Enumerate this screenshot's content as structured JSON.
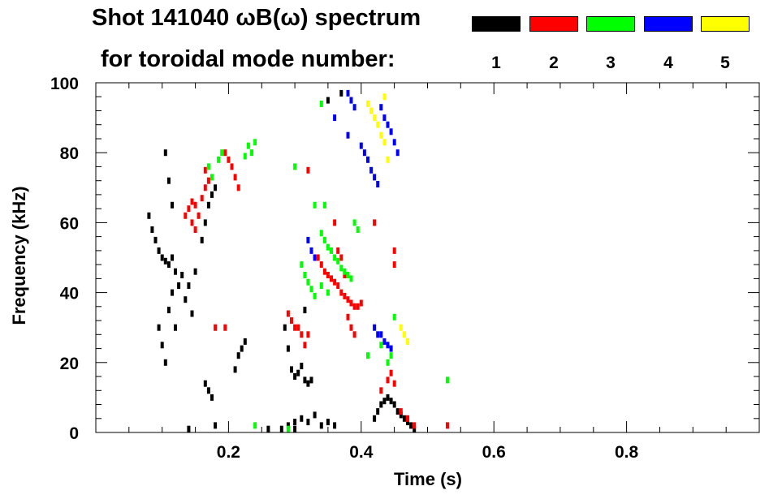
{
  "title_line_1": "Shot 141040 ωB(ω) spectrum",
  "title_line_2": "for toroidal mode number:",
  "legend": [
    {
      "label": "1",
      "color": "#000000"
    },
    {
      "label": "2",
      "color": "#ff0000"
    },
    {
      "label": "3",
      "color": "#00ff00"
    },
    {
      "label": "4",
      "color": "#0000ff"
    },
    {
      "label": "5",
      "color": "#ffff00"
    }
  ],
  "chart_data": {
    "type": "heatmap",
    "title": "Shot 141040 ωB(ω) spectrum for toroidal mode number: 1 2 3 4 5",
    "xlabel": "Time (s)",
    "ylabel": "Frequency (kHz)",
    "xlim": [
      0.0,
      1.0
    ],
    "ylim": [
      0,
      100
    ],
    "xticks": [
      0.2,
      0.4,
      0.6,
      0.8
    ],
    "xtick_labels": [
      "0.2",
      "0.4",
      "0.6",
      "0.8"
    ],
    "yticks": [
      0,
      20,
      40,
      60,
      80,
      100
    ],
    "ytick_labels": [
      "0",
      "20",
      "40",
      "60",
      "80",
      "100"
    ],
    "grid": false,
    "series": [
      {
        "name": "n=1",
        "color": "#000000",
        "points": [
          [
            0.08,
            62
          ],
          [
            0.085,
            58
          ],
          [
            0.09,
            55
          ],
          [
            0.095,
            52
          ],
          [
            0.1,
            50
          ],
          [
            0.105,
            49
          ],
          [
            0.11,
            48
          ],
          [
            0.115,
            50
          ],
          [
            0.12,
            46
          ],
          [
            0.125,
            42
          ],
          [
            0.095,
            30
          ],
          [
            0.1,
            25
          ],
          [
            0.105,
            20
          ],
          [
            0.11,
            35
          ],
          [
            0.115,
            40
          ],
          [
            0.12,
            30
          ],
          [
            0.13,
            45
          ],
          [
            0.135,
            38
          ],
          [
            0.14,
            42
          ],
          [
            0.145,
            34
          ],
          [
            0.105,
            80
          ],
          [
            0.11,
            72
          ],
          [
            0.115,
            65
          ],
          [
            0.15,
            46
          ],
          [
            0.16,
            55
          ],
          [
            0.165,
            60
          ],
          [
            0.17,
            65
          ],
          [
            0.175,
            68
          ],
          [
            0.18,
            70
          ],
          [
            0.21,
            18
          ],
          [
            0.215,
            22
          ],
          [
            0.22,
            24
          ],
          [
            0.225,
            26
          ],
          [
            0.165,
            14
          ],
          [
            0.17,
            12
          ],
          [
            0.175,
            10
          ],
          [
            0.285,
            30
          ],
          [
            0.29,
            24
          ],
          [
            0.295,
            18
          ],
          [
            0.3,
            16
          ],
          [
            0.305,
            17
          ],
          [
            0.31,
            19
          ],
          [
            0.315,
            15
          ],
          [
            0.32,
            14
          ],
          [
            0.325,
            15
          ],
          [
            0.29,
            2
          ],
          [
            0.3,
            3
          ],
          [
            0.31,
            4
          ],
          [
            0.32,
            3
          ],
          [
            0.33,
            5
          ],
          [
            0.34,
            2
          ],
          [
            0.35,
            3
          ],
          [
            0.36,
            2
          ],
          [
            0.42,
            4
          ],
          [
            0.425,
            6
          ],
          [
            0.43,
            8
          ],
          [
            0.435,
            9
          ],
          [
            0.44,
            10
          ],
          [
            0.445,
            9
          ],
          [
            0.45,
            8
          ],
          [
            0.455,
            6
          ],
          [
            0.46,
            5
          ],
          [
            0.465,
            4
          ],
          [
            0.47,
            3
          ],
          [
            0.475,
            2
          ],
          [
            0.48,
            1
          ],
          [
            0.26,
            1
          ],
          [
            0.3,
            1
          ],
          [
            0.18,
            2
          ],
          [
            0.28,
            1
          ],
          [
            0.35,
            95
          ],
          [
            0.37,
            97
          ],
          [
            0.315,
            35
          ],
          [
            0.14,
            1
          ]
        ]
      },
      {
        "name": "n=2",
        "color": "#ff0000",
        "points": [
          [
            0.135,
            62
          ],
          [
            0.14,
            64
          ],
          [
            0.145,
            66
          ],
          [
            0.15,
            65
          ],
          [
            0.155,
            62
          ],
          [
            0.16,
            67
          ],
          [
            0.165,
            70
          ],
          [
            0.17,
            72
          ],
          [
            0.145,
            60
          ],
          [
            0.15,
            58
          ],
          [
            0.2,
            78
          ],
          [
            0.205,
            76
          ],
          [
            0.21,
            73
          ],
          [
            0.215,
            70
          ],
          [
            0.195,
            80
          ],
          [
            0.165,
            75
          ],
          [
            0.335,
            50
          ],
          [
            0.34,
            48
          ],
          [
            0.345,
            46
          ],
          [
            0.35,
            45
          ],
          [
            0.355,
            44
          ],
          [
            0.36,
            43
          ],
          [
            0.365,
            42
          ],
          [
            0.37,
            40
          ],
          [
            0.375,
            39
          ],
          [
            0.38,
            38
          ],
          [
            0.385,
            37
          ],
          [
            0.39,
            36
          ],
          [
            0.395,
            36
          ],
          [
            0.4,
            37
          ],
          [
            0.38,
            33
          ],
          [
            0.375,
            45
          ],
          [
            0.37,
            50
          ],
          [
            0.365,
            52
          ],
          [
            0.385,
            30
          ],
          [
            0.39,
            28
          ],
          [
            0.29,
            34
          ],
          [
            0.295,
            32
          ],
          [
            0.3,
            30
          ],
          [
            0.305,
            30
          ],
          [
            0.31,
            28
          ],
          [
            0.315,
            25
          ],
          [
            0.32,
            28
          ],
          [
            0.44,
            15
          ],
          [
            0.445,
            17
          ],
          [
            0.45,
            14
          ],
          [
            0.43,
            12
          ],
          [
            0.46,
            6
          ],
          [
            0.47,
            4
          ],
          [
            0.48,
            2
          ],
          [
            0.45,
            52
          ],
          [
            0.45,
            48
          ],
          [
            0.42,
            60
          ],
          [
            0.36,
            60
          ],
          [
            0.53,
            2
          ],
          [
            0.32,
            75
          ],
          [
            0.18,
            30
          ],
          [
            0.195,
            30
          ]
        ]
      },
      {
        "name": "n=3",
        "color": "#00ff00",
        "points": [
          [
            0.23,
            82
          ],
          [
            0.235,
            80
          ],
          [
            0.24,
            83
          ],
          [
            0.225,
            79
          ],
          [
            0.185,
            78
          ],
          [
            0.19,
            80
          ],
          [
            0.175,
            73
          ],
          [
            0.17,
            76
          ],
          [
            0.34,
            57
          ],
          [
            0.345,
            55
          ],
          [
            0.35,
            53
          ],
          [
            0.355,
            52
          ],
          [
            0.36,
            50
          ],
          [
            0.365,
            49
          ],
          [
            0.37,
            47
          ],
          [
            0.375,
            46
          ],
          [
            0.38,
            45
          ],
          [
            0.385,
            44
          ],
          [
            0.31,
            48
          ],
          [
            0.315,
            45
          ],
          [
            0.32,
            43
          ],
          [
            0.325,
            41
          ],
          [
            0.33,
            39
          ],
          [
            0.34,
            42
          ],
          [
            0.35,
            40
          ],
          [
            0.39,
            60
          ],
          [
            0.395,
            58
          ],
          [
            0.345,
            65
          ],
          [
            0.44,
            20
          ],
          [
            0.445,
            22
          ],
          [
            0.43,
            25
          ],
          [
            0.41,
            22
          ],
          [
            0.45,
            33
          ],
          [
            0.33,
            65
          ],
          [
            0.3,
            76
          ],
          [
            0.34,
            94
          ],
          [
            0.24,
            2
          ],
          [
            0.29,
            1
          ],
          [
            0.53,
            15
          ]
        ]
      },
      {
        "name": "n=4",
        "color": "#0000ff",
        "points": [
          [
            0.38,
            97
          ],
          [
            0.385,
            95
          ],
          [
            0.39,
            93
          ],
          [
            0.36,
            90
          ],
          [
            0.38,
            85
          ],
          [
            0.4,
            82
          ],
          [
            0.405,
            80
          ],
          [
            0.41,
            78
          ],
          [
            0.415,
            75
          ],
          [
            0.42,
            73
          ],
          [
            0.425,
            71
          ],
          [
            0.43,
            93
          ],
          [
            0.435,
            90
          ],
          [
            0.44,
            88
          ],
          [
            0.445,
            86
          ],
          [
            0.45,
            83
          ],
          [
            0.455,
            80
          ],
          [
            0.32,
            55
          ],
          [
            0.325,
            52
          ],
          [
            0.33,
            50
          ],
          [
            0.43,
            28
          ],
          [
            0.435,
            26
          ],
          [
            0.44,
            25
          ],
          [
            0.445,
            24
          ],
          [
            0.42,
            30
          ],
          [
            0.425,
            28
          ]
        ]
      },
      {
        "name": "n=5",
        "color": "#ffff00",
        "points": [
          [
            0.41,
            94
          ],
          [
            0.415,
            92
          ],
          [
            0.42,
            90
          ],
          [
            0.425,
            88
          ],
          [
            0.43,
            85
          ],
          [
            0.435,
            83
          ],
          [
            0.44,
            78
          ],
          [
            0.435,
            96
          ],
          [
            0.46,
            30
          ],
          [
            0.465,
            28
          ],
          [
            0.47,
            26
          ]
        ]
      }
    ]
  }
}
